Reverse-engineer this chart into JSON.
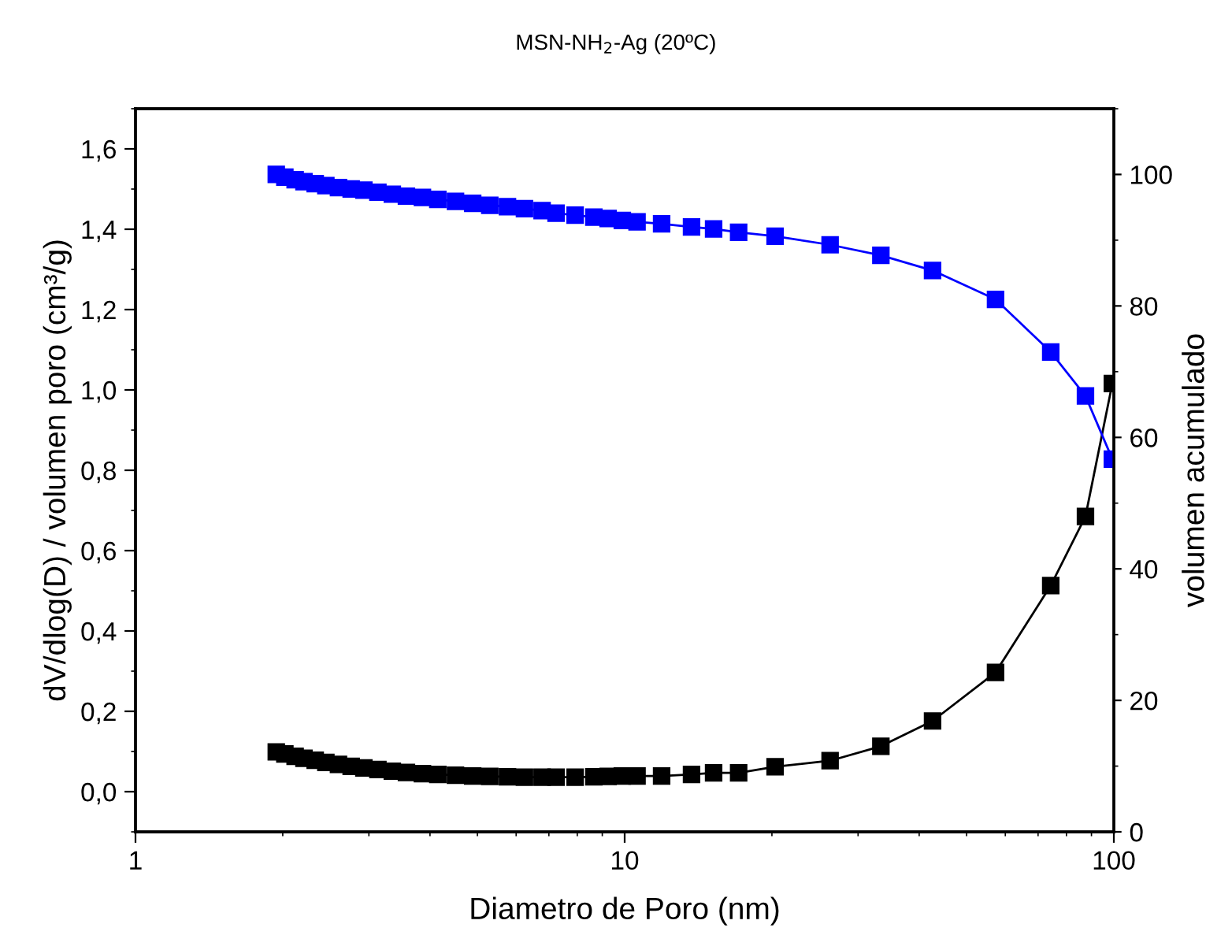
{
  "chart_data": {
    "type": "line",
    "title": "MSN-NH$_{2}$-Ag (20ºC)",
    "xlabel": "Diametro de Poro (nm)",
    "ylabel": "dV/dlog(D) / volumen poro (cm³/g)",
    "y2label": "volumen acumulado",
    "log": "x",
    "marker": "square",
    "line_style": "solid",
    "grid": false,
    "legend": false,
    "xlim": [
      1,
      100
    ],
    "xticks": [
      1,
      10,
      100
    ],
    "ylim": [
      -0.1,
      1.7
    ],
    "yticks": [
      {
        "value": 0,
        "label": "0,0"
      },
      {
        "value": 0.2,
        "label": "0,2"
      },
      {
        "value": 0.4,
        "label": "0,4"
      },
      {
        "value": 0.6,
        "label": "0,6"
      },
      {
        "value": 0.8,
        "label": "0,8"
      },
      {
        "value": 1.0,
        "label": "1,0"
      },
      {
        "value": 1.2,
        "label": "1,2"
      },
      {
        "value": 1.4,
        "label": "1,4"
      },
      {
        "value": 1.6,
        "label": "1,6"
      }
    ],
    "y2lim": [
      0,
      110
    ],
    "y2ticks": [
      0,
      20,
      40,
      60,
      80,
      100
    ],
    "x": [
      1.94,
      2.02,
      2.12,
      2.21,
      2.33,
      2.45,
      2.6,
      2.76,
      2.93,
      3.13,
      3.35,
      3.58,
      3.86,
      4.15,
      4.51,
      4.89,
      5.3,
      5.76,
      6.24,
      6.78,
      7.24,
      7.92,
      8.65,
      9.25,
      9.89,
      10.6,
      11.9,
      13.7,
      15.2,
      17.1,
      20.3,
      26.3,
      33.4,
      42.6,
      57.3,
      74.3,
      87.5,
      99.3
    ],
    "series": [
      {
        "color": "#000000",
        "values": [
          0.099,
          0.094,
          0.088,
          0.083,
          0.078,
          0.073,
          0.068,
          0.063,
          0.059,
          0.055,
          0.051,
          0.048,
          0.045,
          0.043,
          0.041,
          0.039,
          0.038,
          0.037,
          0.036,
          0.036,
          0.036,
          0.036,
          0.037,
          0.038,
          0.039,
          0.039,
          0.039,
          0.043,
          0.047,
          0.047,
          0.062,
          0.077,
          0.113,
          0.176,
          0.297,
          0.513,
          0.685,
          1.016
        ]
      },
      {
        "color": "#0000ff",
        "axis": "y2",
        "values": [
          100.0,
          99.6,
          99.2,
          98.9,
          98.6,
          98.3,
          98.0,
          97.8,
          97.6,
          97.3,
          97.0,
          96.7,
          96.5,
          96.2,
          95.9,
          95.6,
          95.3,
          95.1,
          94.8,
          94.5,
          94.1,
          93.8,
          93.5,
          93.3,
          93.0,
          92.8,
          92.5,
          92.0,
          91.7,
          91.2,
          90.6,
          89.3,
          87.7,
          85.4,
          81.0,
          73.0,
          66.3,
          56.7
        ]
      }
    ]
  }
}
